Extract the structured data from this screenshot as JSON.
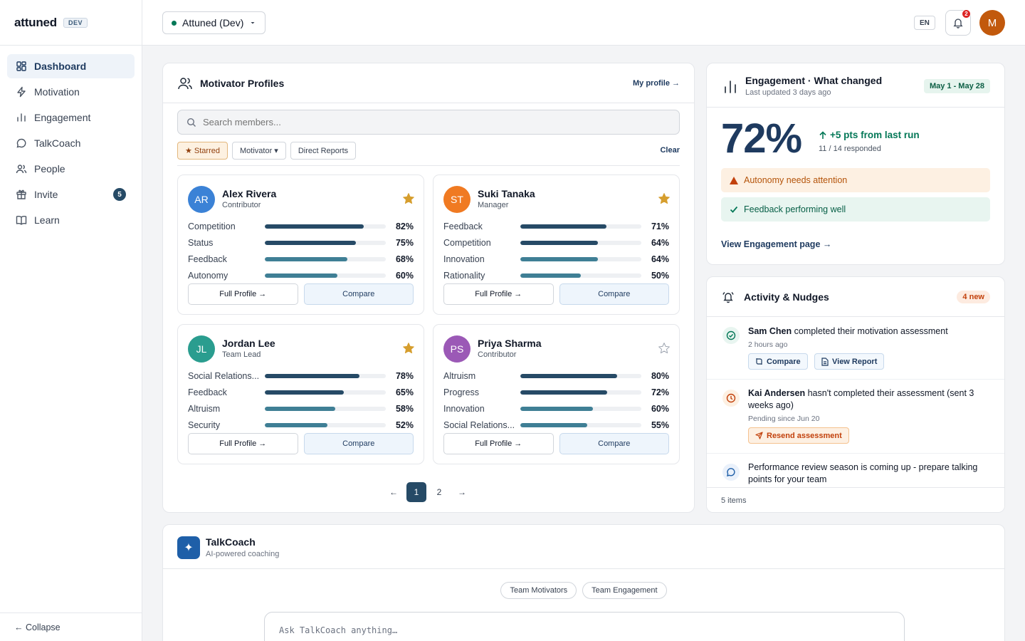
{
  "brand": {
    "name": "attuned",
    "badge": "DEV"
  },
  "sidebar": {
    "items": [
      {
        "label": "Dashboard",
        "icon": "grid-icon",
        "active": true
      },
      {
        "label": "Motivation",
        "icon": "bolt-icon"
      },
      {
        "label": "Engagement",
        "icon": "bar-chart-icon"
      },
      {
        "label": "TalkCoach",
        "icon": "chat-bubble-icon"
      },
      {
        "label": "People",
        "icon": "users-icon"
      },
      {
        "label": "Invite",
        "icon": "gift-icon",
        "badge": "5"
      },
      {
        "label": "Learn",
        "icon": "book-icon"
      }
    ],
    "collapse_label": "← Collapse"
  },
  "topbar": {
    "workspace": "Attuned (Dev)",
    "lang": "EN",
    "notifications_count": "2",
    "avatar_initial": "M"
  },
  "motivator_profiles": {
    "title": "Motivator Profiles",
    "my_profile_link": "My profile →",
    "search_placeholder": "Search members...",
    "filters": {
      "starred": "★ Starred",
      "motivator": "Motivator ▾",
      "direct_reports": "Direct Reports",
      "clear": "Clear"
    },
    "full_profile_label": "Full Profile →",
    "compare_label": "Compare",
    "members": [
      {
        "initials": "AR",
        "name": "Alex Rivera",
        "role": "Contributor",
        "avatar_color": "#3b82d6",
        "starred": true,
        "motivators": [
          {
            "label": "Competition",
            "value": "82%"
          },
          {
            "label": "Status",
            "value": "75%"
          },
          {
            "label": "Feedback",
            "value": "68%"
          },
          {
            "label": "Autonomy",
            "value": "60%"
          }
        ]
      },
      {
        "initials": "ST",
        "name": "Suki Tanaka",
        "role": "Manager",
        "avatar_color": "#f07a22",
        "starred": true,
        "motivators": [
          {
            "label": "Feedback",
            "value": "71%"
          },
          {
            "label": "Competition",
            "value": "64%"
          },
          {
            "label": "Innovation",
            "value": "64%"
          },
          {
            "label": "Rationality",
            "value": "50%"
          }
        ]
      },
      {
        "initials": "JL",
        "name": "Jordan Lee",
        "role": "Team Lead",
        "avatar_color": "#2a9d8f",
        "starred": true,
        "motivators": [
          {
            "label": "Social Relations...",
            "value": "78%"
          },
          {
            "label": "Feedback",
            "value": "65%"
          },
          {
            "label": "Altruism",
            "value": "58%"
          },
          {
            "label": "Security",
            "value": "52%"
          }
        ]
      },
      {
        "initials": "PS",
        "name": "Priya Sharma",
        "role": "Contributor",
        "avatar_color": "#9b59b6",
        "starred": false,
        "motivators": [
          {
            "label": "Altruism",
            "value": "80%"
          },
          {
            "label": "Progress",
            "value": "72%"
          },
          {
            "label": "Innovation",
            "value": "60%"
          },
          {
            "label": "Social Relations...",
            "value": "55%"
          }
        ]
      }
    ],
    "pagination": {
      "prev": "←",
      "pages": [
        "1",
        "2"
      ],
      "current": "1",
      "next": "→"
    }
  },
  "engagement": {
    "title": "Engagement · What changed",
    "subtitle": "Last updated 3 days ago",
    "date_range": "May 1 - May 28",
    "score": "72%",
    "delta": "+5 pts from last run",
    "responded": "11 / 14 responded",
    "alert_warn": "Autonomy needs attention",
    "alert_ok": "Feedback performing well",
    "link": "View Engagement page →"
  },
  "activity": {
    "title": "Activity & Nudges",
    "new_count": "4 new",
    "items": [
      {
        "who": "Sam Chen",
        "text": " completed their motivation assessment",
        "time": "2 hours ago",
        "buttons": [
          "Compare",
          "View Report"
        ]
      },
      {
        "who": "Kai Andersen",
        "text": " hasn't completed their assessment (sent 3 weeks ago)",
        "time": "Pending since Jun 20",
        "buttons": [
          "Resend assessment"
        ]
      },
      {
        "who": "",
        "text": "Performance review season is coming up - prepare talking points for your team"
      }
    ],
    "footer": "5 items"
  },
  "talkcoach": {
    "title": "TalkCoach",
    "subtitle": "AI-powered coaching",
    "chips": [
      "Team Motivators",
      "Team Engagement"
    ],
    "input_placeholder": "Ask TalkCoach anything…"
  },
  "colors": {
    "primary": "#1e3a5f",
    "bar_dark": "#264a66",
    "bar_light": "#3f7f95",
    "star": "#d69e2e"
  }
}
